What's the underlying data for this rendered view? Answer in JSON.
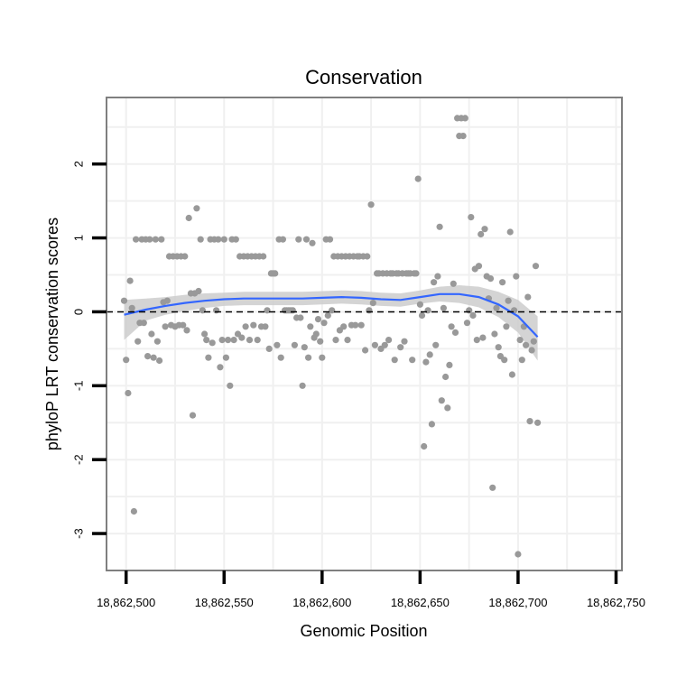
{
  "chart_data": {
    "type": "scatter",
    "title": "Conservation",
    "xlabel": "Genomic Position",
    "ylabel": "phyloP LRT conservation scores",
    "xlim": [
      18862490,
      18862753
    ],
    "ylim": [
      -3.5,
      2.9
    ],
    "x_ticks": [
      18862500,
      18862550,
      18862600,
      18862650,
      18862700,
      18862750
    ],
    "x_tick_labels": [
      "18,862,500",
      "18,862,550",
      "18,862,600",
      "18,862,650",
      "18,862,700",
      "18,862,750"
    ],
    "y_ticks": [
      -3,
      -2,
      -1,
      0,
      1,
      2
    ],
    "y_tick_labels": [
      "-3",
      "-2",
      "-1",
      "0",
      "1",
      "2"
    ],
    "reference_line": {
      "y": 0,
      "style": "dashed"
    },
    "grid": true,
    "colors": {
      "points": "#999999",
      "smooth": "#3366ff",
      "band": "#cccccc",
      "panel_border": "#7f7f7f",
      "grid": "#f0f0f0"
    },
    "points": [
      [
        18862499,
        0.15
      ],
      [
        18862500,
        -0.65
      ],
      [
        18862501,
        -1.1
      ],
      [
        18862502,
        0.42
      ],
      [
        18862503,
        0.05
      ],
      [
        18862504,
        -2.7
      ],
      [
        18862505,
        0.98
      ],
      [
        18862506,
        -0.4
      ],
      [
        18862507,
        -0.15
      ],
      [
        18862508,
        0.98
      ],
      [
        18862509,
        -0.15
      ],
      [
        18862510,
        0.98
      ],
      [
        18862511,
        -0.6
      ],
      [
        18862512,
        0.98
      ],
      [
        18862513,
        -0.3
      ],
      [
        18862514,
        -0.62
      ],
      [
        18862515,
        0.98
      ],
      [
        18862516,
        -0.4
      ],
      [
        18862517,
        -0.66
      ],
      [
        18862518,
        0.98
      ],
      [
        18862519,
        0.13
      ],
      [
        18862520,
        -0.2
      ],
      [
        18862521,
        0.15
      ],
      [
        18862522,
        0.75
      ],
      [
        18862523,
        -0.18
      ],
      [
        18862524,
        0.75
      ],
      [
        18862525,
        -0.2
      ],
      [
        18862526,
        0.75
      ],
      [
        18862527,
        -0.18
      ],
      [
        18862528,
        0.75
      ],
      [
        18862529,
        -0.18
      ],
      [
        18862530,
        0.75
      ],
      [
        18862531,
        -0.25
      ],
      [
        18862532,
        1.27
      ],
      [
        18862533,
        0.25
      ],
      [
        18862534,
        -1.4
      ],
      [
        18862535,
        0.25
      ],
      [
        18862536,
        1.4
      ],
      [
        18862537,
        0.28
      ],
      [
        18862538,
        0.98
      ],
      [
        18862539,
        0.02
      ],
      [
        18862540,
        -0.3
      ],
      [
        18862541,
        -0.38
      ],
      [
        18862542,
        -0.62
      ],
      [
        18862543,
        0.98
      ],
      [
        18862544,
        -0.42
      ],
      [
        18862545,
        0.98
      ],
      [
        18862546,
        0.02
      ],
      [
        18862547,
        0.98
      ],
      [
        18862548,
        -0.75
      ],
      [
        18862549,
        -0.38
      ],
      [
        18862550,
        0.98
      ],
      [
        18862551,
        -0.62
      ],
      [
        18862552,
        -0.38
      ],
      [
        18862553,
        -1.0
      ],
      [
        18862554,
        0.98
      ],
      [
        18862555,
        -0.38
      ],
      [
        18862556,
        0.98
      ],
      [
        18862557,
        -0.3
      ],
      [
        18862558,
        0.75
      ],
      [
        18862559,
        -0.35
      ],
      [
        18862560,
        0.75
      ],
      [
        18862561,
        -0.2
      ],
      [
        18862562,
        0.75
      ],
      [
        18862563,
        -0.38
      ],
      [
        18862564,
        0.75
      ],
      [
        18862565,
        -0.18
      ],
      [
        18862566,
        0.75
      ],
      [
        18862567,
        -0.38
      ],
      [
        18862568,
        0.75
      ],
      [
        18862569,
        -0.2
      ],
      [
        18862570,
        0.75
      ],
      [
        18862571,
        -0.2
      ],
      [
        18862572,
        0.02
      ],
      [
        18862573,
        -0.5
      ],
      [
        18862574,
        0.52
      ],
      [
        18862575,
        0.52
      ],
      [
        18862576,
        0.52
      ],
      [
        18862577,
        -0.45
      ],
      [
        18862578,
        0.98
      ],
      [
        18862579,
        -0.62
      ],
      [
        18862580,
        0.98
      ],
      [
        18862581,
        0.02
      ],
      [
        18862582,
        0.02
      ],
      [
        18862583,
        0.02
      ],
      [
        18862584,
        0.02
      ],
      [
        18862585,
        0.02
      ],
      [
        18862586,
        -0.45
      ],
      [
        18862587,
        -0.08
      ],
      [
        18862588,
        0.98
      ],
      [
        18862589,
        -0.08
      ],
      [
        18862590,
        -1.0
      ],
      [
        18862591,
        -0.48
      ],
      [
        18862592,
        0.98
      ],
      [
        18862593,
        -0.62
      ],
      [
        18862594,
        -0.2
      ],
      [
        18862595,
        0.93
      ],
      [
        18862596,
        -0.35
      ],
      [
        18862597,
        -0.3
      ],
      [
        18862598,
        -0.1
      ],
      [
        18862599,
        -0.4
      ],
      [
        18862600,
        -0.62
      ],
      [
        18862601,
        -0.15
      ],
      [
        18862602,
        0.98
      ],
      [
        18862603,
        -0.05
      ],
      [
        18862604,
        0.98
      ],
      [
        18862605,
        0.02
      ],
      [
        18862606,
        0.75
      ],
      [
        18862607,
        -0.38
      ],
      [
        18862608,
        0.75
      ],
      [
        18862609,
        -0.25
      ],
      [
        18862610,
        0.75
      ],
      [
        18862611,
        -0.2
      ],
      [
        18862612,
        0.75
      ],
      [
        18862613,
        -0.38
      ],
      [
        18862614,
        0.75
      ],
      [
        18862615,
        -0.18
      ],
      [
        18862616,
        0.75
      ],
      [
        18862617,
        -0.18
      ],
      [
        18862618,
        0.75
      ],
      [
        18862619,
        0.75
      ],
      [
        18862620,
        -0.18
      ],
      [
        18862621,
        0.75
      ],
      [
        18862622,
        -0.52
      ],
      [
        18862623,
        0.75
      ],
      [
        18862624,
        0.02
      ],
      [
        18862625,
        1.45
      ],
      [
        18862626,
        0.12
      ],
      [
        18862627,
        -0.45
      ],
      [
        18862628,
        0.52
      ],
      [
        18862629,
        0.52
      ],
      [
        18862630,
        -0.5
      ],
      [
        18862631,
        0.52
      ],
      [
        18862632,
        -0.45
      ],
      [
        18862633,
        0.52
      ],
      [
        18862634,
        -0.38
      ],
      [
        18862635,
        0.52
      ],
      [
        18862636,
        0.52
      ],
      [
        18862637,
        -0.65
      ],
      [
        18862638,
        0.52
      ],
      [
        18862639,
        0.52
      ],
      [
        18862640,
        -0.48
      ],
      [
        18862641,
        0.52
      ],
      [
        18862642,
        -0.4
      ],
      [
        18862643,
        0.52
      ],
      [
        18862644,
        0.52
      ],
      [
        18862645,
        0.52
      ],
      [
        18862646,
        -0.65
      ],
      [
        18862647,
        0.52
      ],
      [
        18862648,
        0.52
      ],
      [
        18862649,
        1.8
      ],
      [
        18862650,
        0.1
      ],
      [
        18862651,
        -0.05
      ],
      [
        18862652,
        -1.82
      ],
      [
        18862653,
        -0.68
      ],
      [
        18862654,
        0.02
      ],
      [
        18862655,
        -0.58
      ],
      [
        18862656,
        -1.52
      ],
      [
        18862657,
        0.4
      ],
      [
        18862658,
        -0.45
      ],
      [
        18862659,
        0.48
      ],
      [
        18862660,
        1.15
      ],
      [
        18862661,
        -1.2
      ],
      [
        18862662,
        0.05
      ],
      [
        18862663,
        -0.88
      ],
      [
        18862664,
        -1.3
      ],
      [
        18862665,
        -0.72
      ],
      [
        18862666,
        -0.2
      ],
      [
        18862667,
        0.38
      ],
      [
        18862668,
        -0.28
      ],
      [
        18862669,
        2.62
      ],
      [
        18862670,
        2.38
      ],
      [
        18862671,
        2.62
      ],
      [
        18862672,
        2.38
      ],
      [
        18862673,
        2.62
      ],
      [
        18862674,
        -0.15
      ],
      [
        18862675,
        0.02
      ],
      [
        18862676,
        1.28
      ],
      [
        18862677,
        -0.05
      ],
      [
        18862678,
        0.58
      ],
      [
        18862679,
        -0.38
      ],
      [
        18862680,
        0.62
      ],
      [
        18862681,
        1.05
      ],
      [
        18862682,
        -0.35
      ],
      [
        18862683,
        1.12
      ],
      [
        18862684,
        0.48
      ],
      [
        18862685,
        0.18
      ],
      [
        18862686,
        0.45
      ],
      [
        18862687,
        -2.38
      ],
      [
        18862688,
        -0.3
      ],
      [
        18862689,
        0.05
      ],
      [
        18862690,
        -0.48
      ],
      [
        18862691,
        -0.6
      ],
      [
        18862692,
        0.4
      ],
      [
        18862693,
        -0.65
      ],
      [
        18862694,
        -0.2
      ],
      [
        18862695,
        0.15
      ],
      [
        18862696,
        1.08
      ],
      [
        18862697,
        -0.85
      ],
      [
        18862698,
        0.02
      ],
      [
        18862699,
        0.48
      ],
      [
        18862700,
        -3.28
      ],
      [
        18862701,
        -0.38
      ],
      [
        18862702,
        -0.65
      ],
      [
        18862703,
        -0.2
      ],
      [
        18862704,
        -0.45
      ],
      [
        18862705,
        0.2
      ],
      [
        18862706,
        -1.48
      ],
      [
        18862707,
        -0.52
      ],
      [
        18862708,
        -0.4
      ],
      [
        18862709,
        0.62
      ],
      [
        18862710,
        -1.5
      ]
    ],
    "smooth": {
      "x": [
        18862499,
        18862510,
        18862520,
        18862530,
        18862540,
        18862550,
        18862560,
        18862570,
        18862580,
        18862590,
        18862600,
        18862610,
        18862620,
        18862630,
        18862640,
        18862650,
        18862660,
        18862670,
        18862680,
        18862690,
        18862700,
        18862710
      ],
      "fit": [
        -0.04,
        0.03,
        0.08,
        0.12,
        0.15,
        0.17,
        0.18,
        0.18,
        0.18,
        0.18,
        0.19,
        0.2,
        0.19,
        0.17,
        0.16,
        0.2,
        0.24,
        0.24,
        0.2,
        0.1,
        -0.06,
        -0.34
      ],
      "band_upper": [
        0.16,
        0.18,
        0.2,
        0.23,
        0.25,
        0.26,
        0.27,
        0.27,
        0.27,
        0.27,
        0.28,
        0.29,
        0.28,
        0.26,
        0.25,
        0.29,
        0.34,
        0.36,
        0.34,
        0.27,
        0.16,
        -0.06
      ],
      "band_lower": [
        -0.38,
        -0.12,
        -0.04,
        0.01,
        0.05,
        0.08,
        0.09,
        0.09,
        0.09,
        0.09,
        0.1,
        0.11,
        0.1,
        0.08,
        0.07,
        0.11,
        0.14,
        0.12,
        0.06,
        -0.07,
        -0.28,
        -0.66
      ]
    }
  }
}
